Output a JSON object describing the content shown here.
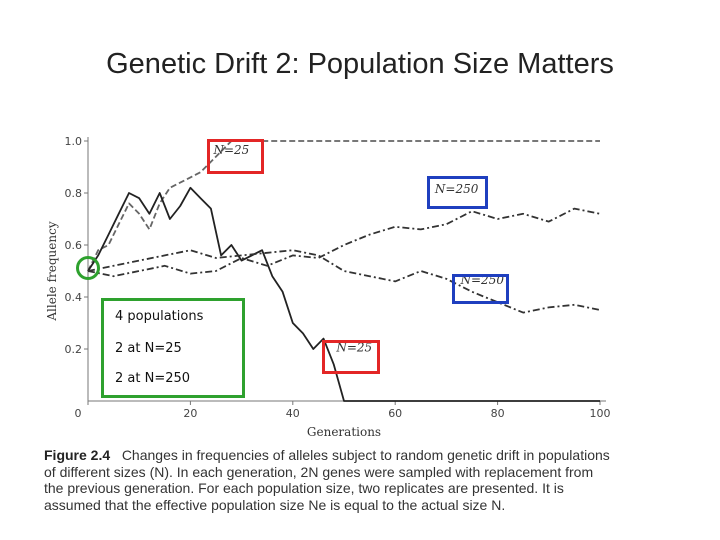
{
  "slide": {
    "title": "Genetic Drift 2:  Population Size Matters"
  },
  "chart_data": {
    "type": "line",
    "title": "",
    "xlabel": "Generations",
    "ylabel": "Allele frequency",
    "xlim": [
      0,
      100
    ],
    "ylim": [
      0,
      1.0
    ],
    "xticks": [
      "0",
      "20",
      "40",
      "60",
      "80",
      "100"
    ],
    "yticks": [
      "0.2",
      "0.4",
      "0.6",
      "0.8",
      "1.0"
    ],
    "start_frequency": 0.5,
    "series": [
      {
        "name": "N=25 (fixed at 1.0)",
        "style": "dashed",
        "x": [
          0,
          2,
          4,
          6,
          8,
          10,
          12,
          14,
          16,
          18,
          20,
          22,
          24,
          26,
          28,
          30,
          40,
          60,
          80,
          100
        ],
        "y": [
          0.5,
          0.58,
          0.6,
          0.68,
          0.76,
          0.72,
          0.66,
          0.76,
          0.82,
          0.84,
          0.86,
          0.88,
          0.92,
          0.96,
          1.0,
          1.0,
          1.0,
          1.0,
          1.0,
          1.0
        ]
      },
      {
        "name": "N=25 (lost at 0)",
        "style": "solid",
        "x": [
          0,
          2,
          4,
          6,
          8,
          10,
          12,
          14,
          16,
          18,
          20,
          22,
          24,
          26,
          28,
          30,
          32,
          34,
          36,
          38,
          40,
          42,
          44,
          46,
          48,
          50,
          60,
          80,
          100
        ],
        "y": [
          0.5,
          0.56,
          0.64,
          0.72,
          0.8,
          0.78,
          0.72,
          0.8,
          0.7,
          0.75,
          0.82,
          0.78,
          0.74,
          0.56,
          0.6,
          0.54,
          0.56,
          0.58,
          0.48,
          0.42,
          0.3,
          0.26,
          0.2,
          0.24,
          0.14,
          0.0,
          0.0,
          0.0,
          0.0
        ]
      },
      {
        "name": "N=250 (upper)",
        "style": "dash-dot",
        "x": [
          0,
          5,
          10,
          15,
          20,
          25,
          30,
          35,
          40,
          45,
          50,
          55,
          60,
          65,
          70,
          75,
          80,
          85,
          90,
          95,
          100
        ],
        "y": [
          0.5,
          0.48,
          0.5,
          0.52,
          0.49,
          0.5,
          0.55,
          0.52,
          0.56,
          0.55,
          0.6,
          0.64,
          0.67,
          0.66,
          0.68,
          0.73,
          0.7,
          0.72,
          0.69,
          0.74,
          0.72
        ]
      },
      {
        "name": "N=250 (lower)",
        "style": "dash-dot",
        "x": [
          0,
          5,
          10,
          15,
          20,
          25,
          30,
          35,
          40,
          45,
          50,
          55,
          60,
          65,
          70,
          75,
          80,
          85,
          90,
          95,
          100
        ],
        "y": [
          0.5,
          0.52,
          0.54,
          0.56,
          0.58,
          0.55,
          0.56,
          0.57,
          0.58,
          0.56,
          0.5,
          0.48,
          0.46,
          0.5,
          0.47,
          0.42,
          0.38,
          0.34,
          0.36,
          0.37,
          0.35
        ]
      }
    ],
    "annotations": [
      {
        "label": "N=25",
        "x": 28,
        "y": 0.95
      },
      {
        "label": "N=250",
        "x": 72,
        "y": 0.8
      },
      {
        "label": "N=250",
        "x": 77,
        "y": 0.45
      },
      {
        "label": "N=25",
        "x": 52,
        "y": 0.19
      }
    ]
  },
  "legend": {
    "line1": "4 populations",
    "line2": "2 at N=25",
    "line3": "2 at N=250"
  },
  "caption": {
    "figure_label": "Figure 2.4",
    "text": "Changes in frequencies of alleles subject to random genetic drift in populations of different sizes (N). In each generation, 2N genes were sampled with replacement from the previous generation. For each population size, two replicates are presented. It is assumed that the effective population size Ne is equal to the actual size N."
  },
  "colors": {
    "red_box": "#e32626",
    "blue_box": "#1f3fbf",
    "green_box": "#2ea12e"
  }
}
